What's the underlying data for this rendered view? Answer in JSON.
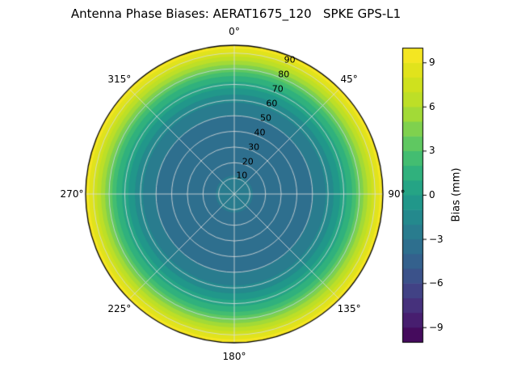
{
  "title": "Antenna Phase Biases: AERAT1675_120   SPKE GPS-L1",
  "chart_data": {
    "type": "heatmap",
    "subtype": "polar_filled_contour",
    "title": "Antenna Phase Biases: AERAT1675_120   SPKE GPS-L1",
    "colormap": "viridis",
    "vmin": -10,
    "vmax": 10,
    "contour_level_step_mm": 1,
    "rmax": 95,
    "theta_tick_labels": [
      "0°",
      "45°",
      "90°",
      "135°",
      "180°",
      "225°",
      "270°",
      "315°"
    ],
    "radial_ticks": [
      10,
      20,
      30,
      40,
      50,
      60,
      70,
      80,
      90
    ],
    "radial_profile": {
      "zenith_deg": [
        0,
        10,
        20,
        30,
        40,
        50,
        60,
        70,
        75,
        80,
        85,
        90,
        95
      ],
      "bias_mm": [
        -2.0,
        -2.9,
        -3.5,
        -3.8,
        -3.6,
        -3.0,
        -1.8,
        0.5,
        1.8,
        3.8,
        5.9,
        7.9,
        9.8
      ]
    },
    "pattern": "azimuthally symmetric: dark blue ring near mid radii, teal center, green to bright yellow at outer rim",
    "colorbar": {
      "label": "Bias (mm)",
      "ticks": [
        -9,
        -6,
        -3,
        0,
        3,
        6,
        9
      ],
      "range": [
        -10,
        10
      ]
    }
  },
  "polar": {
    "angle_labels": [
      {
        "angle": 0,
        "text": "0°"
      },
      {
        "angle": 45,
        "text": "45°"
      },
      {
        "angle": 90,
        "text": "90°"
      },
      {
        "angle": 135,
        "text": "135°"
      },
      {
        "angle": 180,
        "text": "180°"
      },
      {
        "angle": 225,
        "text": "225°"
      },
      {
        "angle": 270,
        "text": "270°"
      },
      {
        "angle": 315,
        "text": "315°"
      }
    ],
    "radial_labels": [
      {
        "r": 10,
        "text": "10"
      },
      {
        "r": 20,
        "text": "20"
      },
      {
        "r": 30,
        "text": "30"
      },
      {
        "r": 40,
        "text": "40"
      },
      {
        "r": 50,
        "text": "50"
      },
      {
        "r": 60,
        "text": "60"
      },
      {
        "r": 70,
        "text": "70"
      },
      {
        "r": 80,
        "text": "80"
      },
      {
        "r": 90,
        "text": "90"
      }
    ],
    "radial_label_angle_deg": 22.5
  },
  "colorbar": {
    "label": "Bias (mm)",
    "tick_values": [
      -9,
      -6,
      -3,
      0,
      3,
      6,
      9
    ],
    "tick_labels": [
      "−9",
      "−6",
      "−3",
      "0",
      "3",
      "6",
      "9"
    ]
  }
}
